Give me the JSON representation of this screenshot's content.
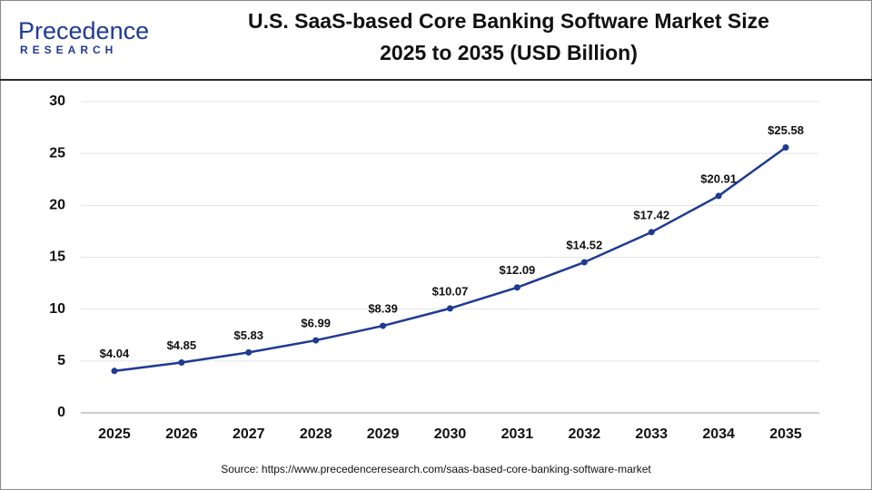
{
  "logo": {
    "name": "Precedence",
    "tagline": "RESEARCH"
  },
  "chart_data": {
    "type": "line",
    "title": [
      "U.S. SaaS-based Core Banking Software Market Size",
      "2025 to 2035 (USD Billion)"
    ],
    "categories": [
      "2025",
      "2026",
      "2027",
      "2028",
      "2029",
      "2030",
      "2031",
      "2032",
      "2033",
      "2034",
      "2035"
    ],
    "values": [
      4.04,
      4.85,
      5.83,
      6.99,
      8.39,
      10.07,
      12.09,
      14.52,
      17.42,
      20.91,
      25.58
    ],
    "value_labels": [
      "$4.04",
      "$4.85",
      "$5.83",
      "$6.99",
      "$8.39",
      "$10.07",
      "$12.09",
      "$14.52",
      "$17.42",
      "$20.91",
      "$25.58"
    ],
    "color": "#1f3a93",
    "ylim": [
      0,
      30
    ],
    "yticks": [
      0,
      5,
      10,
      15,
      20,
      25,
      30
    ],
    "grid": true,
    "source": "Source: https://www.precedenceresearch.com/saas-based-core-banking-software-market"
  }
}
